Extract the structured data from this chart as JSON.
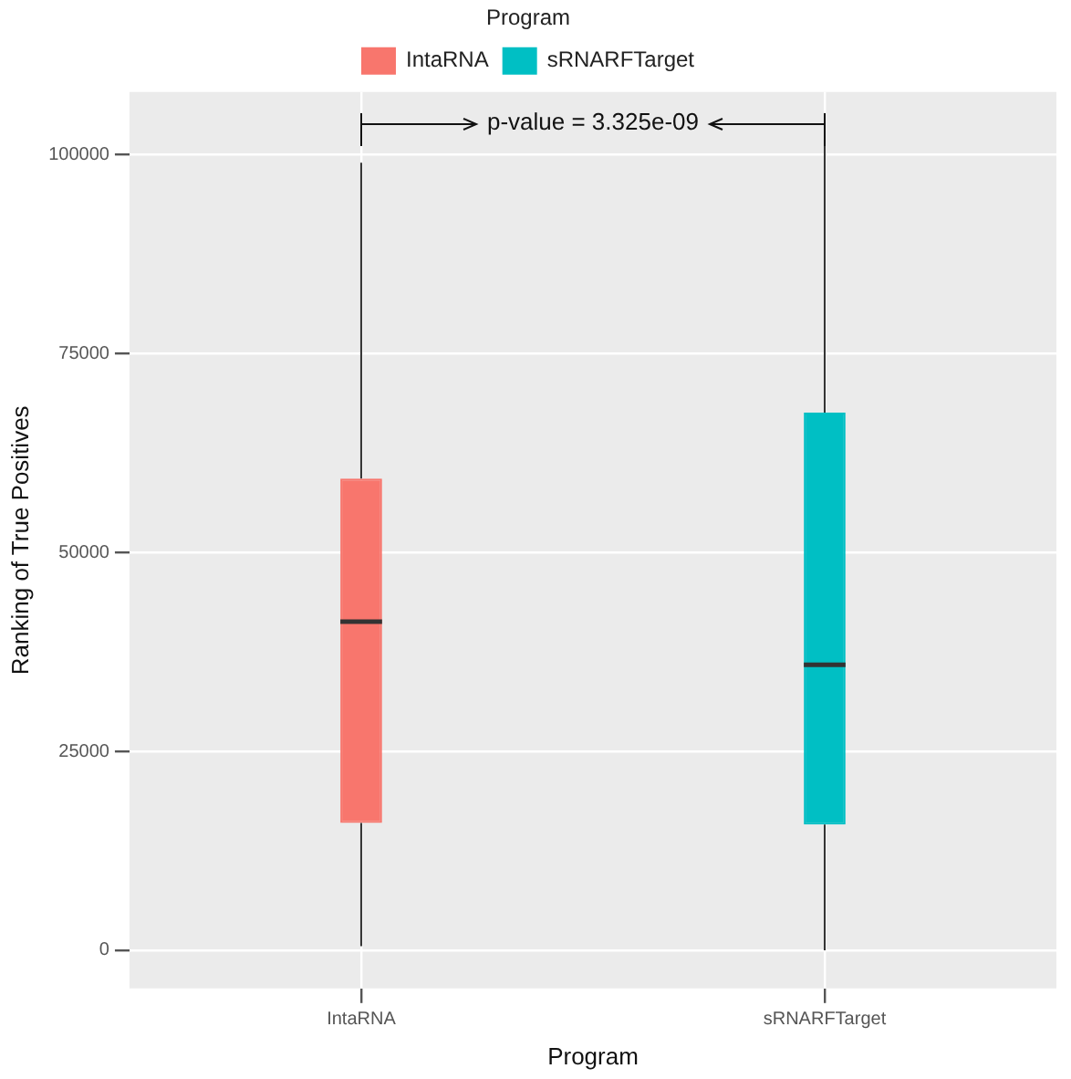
{
  "chart_data": {
    "type": "box",
    "xlabel": "Program",
    "ylabel": "Ranking of True Positives",
    "legend_title": "Program",
    "legend": "top",
    "categories": [
      "IntaRNA",
      "sRNARFTarget"
    ],
    "series": [
      {
        "name": "IntaRNA",
        "color": "#f8766d",
        "boxes": [
          {
            "low": 500,
            "q1": 16000,
            "median": 41300,
            "q3": 59300,
            "high": 99000
          },
          null
        ]
      },
      {
        "name": "sRNARFTarget",
        "color": "#00bfc4",
        "boxes": [
          null,
          {
            "low": 0,
            "q1": 15800,
            "median": 35900,
            "q3": 67600,
            "high": 102000
          }
        ]
      }
    ],
    "ylim": [
      -4800,
      107900
    ],
    "yticks": [
      0,
      25000,
      50000,
      75000,
      100000
    ],
    "grid": true,
    "annotations": [
      "p-value = 3.325e-09"
    ]
  }
}
